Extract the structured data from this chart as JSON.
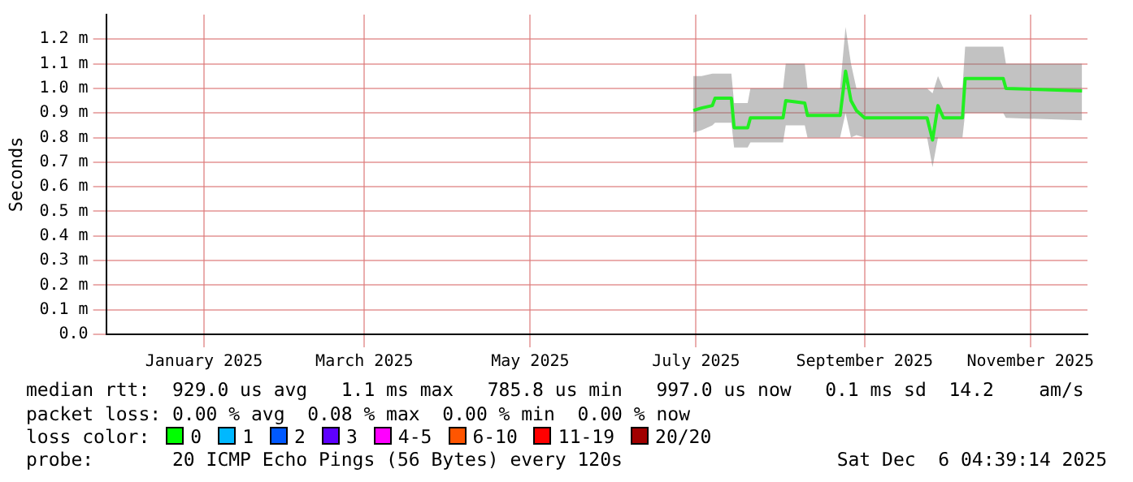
{
  "chart_data": {
    "type": "line",
    "ylabel": "Seconds",
    "xlim": [
      "2024-12-10",
      "2025-12-06"
    ],
    "xticks": [
      {
        "value": "2025-01-15",
        "label": "January 2025"
      },
      {
        "value": "2025-03-15",
        "label": "March 2025"
      },
      {
        "value": "2025-05-15",
        "label": "May 2025"
      },
      {
        "value": "2025-07-15",
        "label": "July 2025"
      },
      {
        "value": "2025-09-15",
        "label": "September 2025"
      },
      {
        "value": "2025-11-15",
        "label": "November 2025"
      }
    ],
    "ylim": [
      0,
      1.3
    ],
    "yticks": [
      {
        "value": 0,
        "label": "0.0"
      },
      {
        "value": 0.1,
        "label": "0.1 m"
      },
      {
        "value": 0.2,
        "label": "0.2 m"
      },
      {
        "value": 0.3,
        "label": "0.3 m"
      },
      {
        "value": 0.4,
        "label": "0.4 m"
      },
      {
        "value": 0.5,
        "label": "0.5 m"
      },
      {
        "value": 0.6,
        "label": "0.6 m"
      },
      {
        "value": 0.7,
        "label": "0.7 m"
      },
      {
        "value": 0.8,
        "label": "0.8 m"
      },
      {
        "value": 0.9,
        "label": "0.9 m"
      },
      {
        "value": 1.0,
        "label": "1.0 m"
      },
      {
        "value": 1.1,
        "label": "1.1 m"
      },
      {
        "value": 1.2,
        "label": "1.2 m"
      }
    ],
    "x": [
      "2025-07-14",
      "2025-07-17",
      "2025-07-21",
      "2025-07-22",
      "2025-07-28",
      "2025-07-29",
      "2025-08-03",
      "2025-08-04",
      "2025-08-16",
      "2025-08-17",
      "2025-08-24",
      "2025-08-25",
      "2025-09-06",
      "2025-09-08",
      "2025-09-10",
      "2025-09-12",
      "2025-09-15",
      "2025-10-08",
      "2025-10-10",
      "2025-10-12",
      "2025-10-14",
      "2025-10-21",
      "2025-10-22",
      "2025-11-05",
      "2025-11-06",
      "2025-12-04"
    ],
    "series": [
      {
        "color": "#22ee22",
        "values": [
          0.91,
          0.92,
          0.93,
          0.96,
          0.96,
          0.84,
          0.84,
          0.88,
          0.88,
          0.95,
          0.94,
          0.89,
          0.89,
          1.07,
          0.95,
          0.91,
          0.88,
          0.88,
          0.79,
          0.93,
          0.88,
          0.88,
          1.04,
          1.04,
          1.0,
          0.99
        ],
        "lower": [
          0.82,
          0.83,
          0.85,
          0.86,
          0.86,
          0.76,
          0.76,
          0.78,
          0.78,
          0.85,
          0.85,
          0.8,
          0.8,
          0.9,
          0.8,
          0.81,
          0.8,
          0.8,
          0.68,
          0.8,
          0.8,
          0.8,
          0.9,
          0.9,
          0.88,
          0.87
        ],
        "upper": [
          1.05,
          1.05,
          1.06,
          1.06,
          1.06,
          0.94,
          0.94,
          1.0,
          1.0,
          1.1,
          1.1,
          1.0,
          1.0,
          1.25,
          1.1,
          1.0,
          1.0,
          1.0,
          0.98,
          1.05,
          1.0,
          1.0,
          1.17,
          1.17,
          1.1,
          1.1
        ]
      }
    ],
    "grid": true,
    "legend": false,
    "marker": "none",
    "line_style": "solid",
    "annotations": [
      "median rtt:  929.0 us avg   1.1 ms max   785.8 us min   997.0 us now   0.1 ms sd  14.2    am/s",
      "packet loss: 0.00 % avg  0.08 % max  0.00 % min  0.00 % now",
      "loss color:",
      "0",
      "1",
      "2",
      "3",
      "4-5",
      "6-10",
      "11-19",
      "20/20",
      "probe:       20 ICMP Echo Pings (56 Bytes) every 120s",
      "Sat Dec  6 04:39:14 2025"
    ]
  }
}
